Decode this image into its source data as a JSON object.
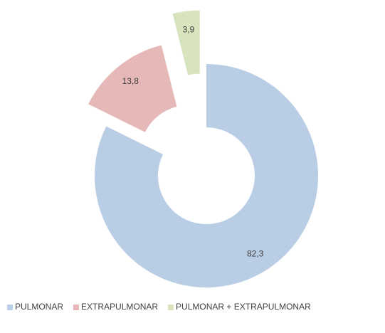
{
  "chart_data": {
    "type": "donut",
    "categories": [
      "PULMONAR",
      "EXTRAPULMONAR",
      "PULMONAR + EXTRAPULMONAR"
    ],
    "values": [
      82.3,
      13.8,
      3.9
    ],
    "value_labels": [
      "82,3",
      "13,8",
      "3,9"
    ],
    "colors": [
      "#b9cde5",
      "#e6b9b8",
      "#d7e4bd"
    ],
    "legend": "bottom"
  }
}
